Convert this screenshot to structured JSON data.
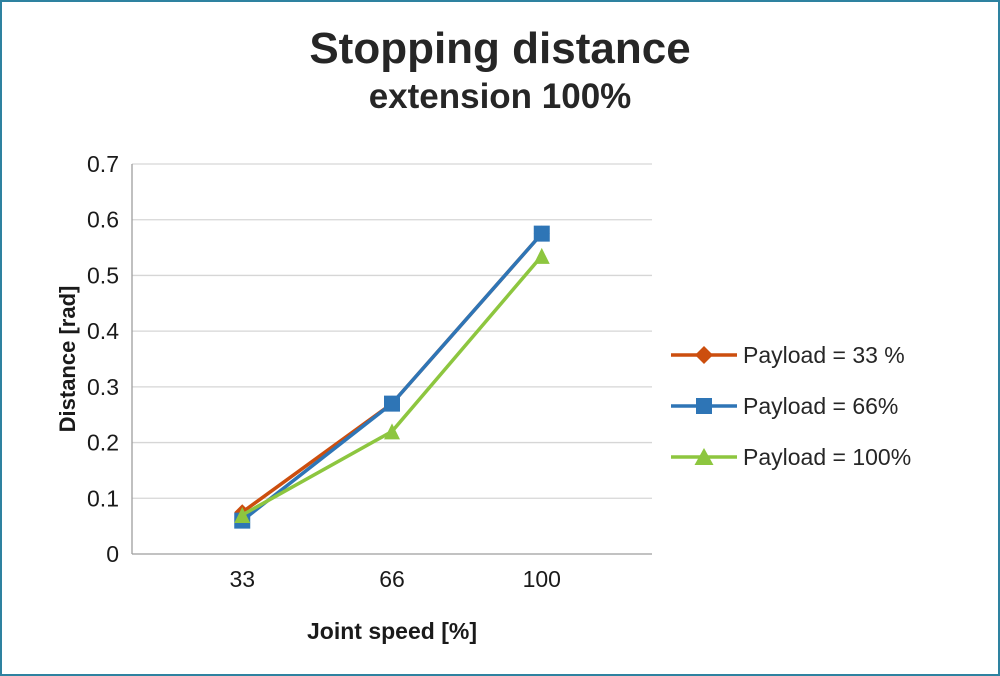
{
  "chart_data": {
    "type": "line",
    "categories": [
      "33",
      "66",
      "100"
    ],
    "series": [
      {
        "name": "Payload = 33 %",
        "values": [
          0.075,
          0.27,
          0.575
        ],
        "color": "#CC4E0E",
        "marker": "diamond"
      },
      {
        "name": "Payload =  66%",
        "values": [
          0.06,
          0.27,
          0.575
        ],
        "color": "#2E75B6",
        "marker": "square"
      },
      {
        "name": "Payload =  100%",
        "values": [
          0.07,
          0.22,
          0.535
        ],
        "color": "#8DC63F",
        "marker": "triangle"
      }
    ],
    "title": "Stopping distance",
    "subtitle": "extension 100%",
    "xlabel": "Joint speed [%]",
    "ylabel": "Distance [rad]",
    "ylim": [
      0,
      0.7
    ],
    "ytick_step": 0.1,
    "ytick_labels": [
      "0",
      "0.1",
      "0.2",
      "0.3",
      "0.4",
      "0.5",
      "0.6",
      "0.7"
    ],
    "grid": true,
    "legend_position": "right"
  },
  "colors": {
    "grid": "#D6D6D6",
    "axis": "#9E9E9E",
    "tick_text": "#1a1a1a",
    "border": "#2E82A0",
    "background": "#FFFFFF"
  }
}
